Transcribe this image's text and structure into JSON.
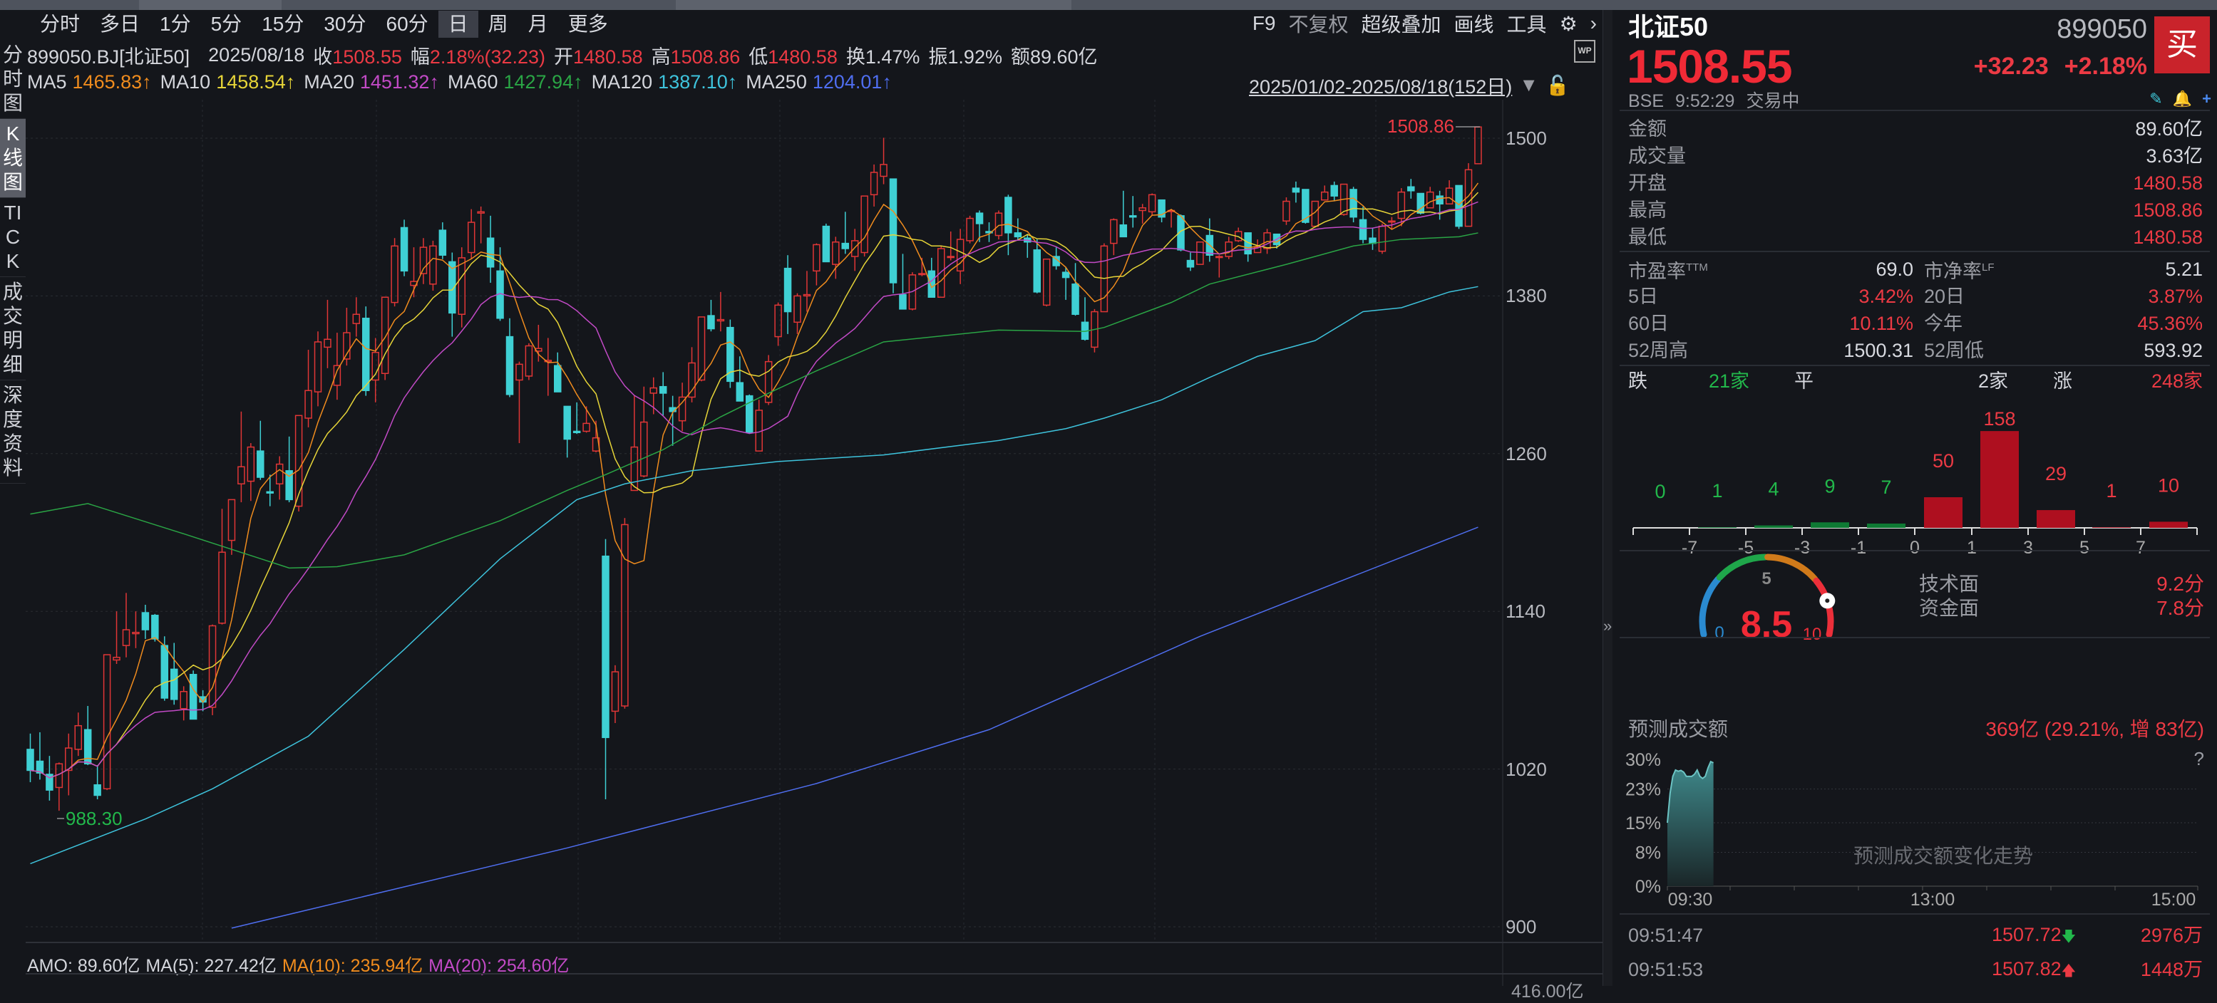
{
  "toolbar": {
    "tabs": [
      "分时",
      "多日",
      "1分",
      "5分",
      "15分",
      "30分",
      "60分",
      "日",
      "周",
      "月",
      "更多"
    ],
    "active": "日",
    "tools": {
      "f9": "F9",
      "adjust": "不复权",
      "overlay": "超级叠加",
      "draw": "画线",
      "tools": "工具"
    }
  },
  "left_tabs": [
    "分时图",
    "K线图",
    "TICK",
    "成交明细",
    "深度资料"
  ],
  "info": {
    "code": "899050.BJ[北证50]",
    "date": "2025/08/18",
    "close_label": "收",
    "close": "1508.55",
    "range_label": "幅",
    "range": "2.18%(32.23)",
    "open_label": "开",
    "open": "1480.58",
    "high_label": "高",
    "high": "1508.86",
    "low_label": "低",
    "low": "1480.58",
    "turnover": "换1.47%",
    "amplitude": "振1.92%",
    "amount": "额89.60亿",
    "wp": "WP"
  },
  "ma": [
    {
      "label": "MA5",
      "value": "1465.83↑",
      "color": "#f08c1e"
    },
    {
      "label": "MA10",
      "value": "1458.54↑",
      "color": "#e6d438"
    },
    {
      "label": "MA20",
      "value": "1451.32↑",
      "color": "#c24ac6"
    },
    {
      "label": "MA60",
      "value": "1427.94↑",
      "color": "#2aa545"
    },
    {
      "label": "MA120",
      "value": "1387.10↑",
      "color": "#3ec3dc"
    },
    {
      "label": "MA250",
      "value": "1204.01↑",
      "color": "#4f6ef0"
    }
  ],
  "date_range": "2025/01/02-2025/08/18(152日)",
  "chart_data": {
    "type": "candlestick",
    "y_ticks": [
      1500,
      1380,
      1260,
      1140,
      1020,
      900
    ],
    "ylim": [
      900,
      1512
    ],
    "grid": true,
    "max_label": "1508.86",
    "min_label": "988.30",
    "up_color": "#e03636",
    "down_color": "#3fd0d4",
    "candles": [
      [
        1035,
        1047,
        1010,
        1019
      ],
      [
        1026,
        1048,
        1012,
        1017
      ],
      [
        1016,
        1030,
        996,
        1004
      ],
      [
        1006,
        1025,
        988.3,
        1024
      ],
      [
        1019,
        1047,
        1000,
        1036
      ],
      [
        1035,
        1063,
        1030,
        1053
      ],
      [
        1050,
        1068,
        1023,
        1024
      ],
      [
        1008,
        1023,
        997,
        1000
      ],
      [
        1005,
        1107,
        1004,
        1107
      ],
      [
        1103,
        1140,
        1100,
        1105
      ],
      [
        1114,
        1154,
        1105,
        1126
      ],
      [
        1123,
        1140,
        1112,
        1124
      ],
      [
        1139,
        1145,
        1119,
        1126
      ],
      [
        1137,
        1138,
        1117,
        1119
      ],
      [
        1114,
        1121,
        1072,
        1074
      ],
      [
        1096,
        1116,
        1069,
        1073
      ],
      [
        1066,
        1083,
        1057,
        1079
      ],
      [
        1092,
        1095,
        1058,
        1058
      ],
      [
        1075,
        1080,
        1064,
        1071
      ],
      [
        1067,
        1130,
        1061,
        1129
      ],
      [
        1131,
        1218,
        1130,
        1185
      ],
      [
        1194,
        1225,
        1183,
        1225
      ],
      [
        1237,
        1292,
        1223,
        1250
      ],
      [
        1239,
        1268,
        1224,
        1265
      ],
      [
        1262,
        1285,
        1240,
        1242
      ],
      [
        1231,
        1244,
        1220,
        1230
      ],
      [
        1237,
        1258,
        1225,
        1252
      ],
      [
        1247,
        1273,
        1223,
        1225
      ],
      [
        1220,
        1289,
        1216,
        1289
      ],
      [
        1287,
        1339,
        1280,
        1308
      ],
      [
        1307,
        1353,
        1296,
        1345
      ],
      [
        1341,
        1377,
        1325,
        1347
      ],
      [
        1312,
        1352,
        1301,
        1327
      ],
      [
        1332,
        1371,
        1327,
        1352
      ],
      [
        1359,
        1379,
        1349,
        1366
      ],
      [
        1363,
        1372,
        1304,
        1308
      ],
      [
        1316,
        1348,
        1299,
        1337
      ],
      [
        1321,
        1379,
        1316,
        1379
      ],
      [
        1375,
        1424,
        1372,
        1418
      ],
      [
        1432,
        1438,
        1395,
        1399
      ],
      [
        1388,
        1417,
        1379,
        1391
      ],
      [
        1397,
        1424,
        1389,
        1417
      ],
      [
        1389,
        1422,
        1384,
        1418
      ],
      [
        1430,
        1436,
        1408,
        1411
      ],
      [
        1406,
        1413,
        1349,
        1367
      ],
      [
        1366,
        1417,
        1356,
        1409
      ],
      [
        1413,
        1446,
        1408,
        1436
      ],
      [
        1443,
        1448,
        1420,
        1444
      ],
      [
        1424,
        1441,
        1390,
        1402
      ],
      [
        1399,
        1417,
        1361,
        1363
      ],
      [
        1349,
        1363,
        1303,
        1305
      ],
      [
        1316,
        1330,
        1268,
        1328
      ],
      [
        1319,
        1344,
        1316,
        1342
      ],
      [
        1338,
        1358,
        1330,
        1340
      ],
      [
        1330,
        1348,
        1304,
        1331
      ],
      [
        1327,
        1337,
        1307,
        1307
      ],
      [
        1296,
        1296,
        1257,
        1271
      ],
      [
        1277,
        1299,
        1275,
        1276
      ],
      [
        1277,
        1296,
        1276,
        1283
      ],
      [
        1262,
        1285,
        1261,
        1272
      ],
      [
        1182,
        1195,
        997,
        1044
      ],
      [
        1064,
        1099,
        1055,
        1094
      ],
      [
        1068,
        1211,
        1066,
        1206
      ],
      [
        1232,
        1304,
        1232,
        1265
      ],
      [
        1243,
        1311,
        1242,
        1284
      ],
      [
        1306,
        1318,
        1290,
        1310
      ],
      [
        1311,
        1322,
        1289,
        1306
      ],
      [
        1295,
        1304,
        1266,
        1292
      ],
      [
        1285,
        1314,
        1277,
        1303
      ],
      [
        1303,
        1341,
        1299,
        1329
      ],
      [
        1316,
        1364,
        1315,
        1364
      ],
      [
        1365,
        1377,
        1353,
        1355
      ],
      [
        1361,
        1383,
        1353,
        1362
      ],
      [
        1356,
        1362,
        1310,
        1315
      ],
      [
        1314,
        1334,
        1300,
        1300
      ],
      [
        1304,
        1305,
        1275,
        1276
      ],
      [
        1262,
        1301,
        1262,
        1293
      ],
      [
        1299,
        1335,
        1297,
        1330
      ],
      [
        1349,
        1375,
        1342,
        1373
      ],
      [
        1401,
        1411,
        1351,
        1368
      ],
      [
        1360,
        1382,
        1351,
        1380
      ],
      [
        1380,
        1399,
        1368,
        1381
      ],
      [
        1399,
        1420,
        1388,
        1419
      ],
      [
        1433,
        1435,
        1406,
        1406
      ],
      [
        1404,
        1425,
        1393,
        1421
      ],
      [
        1420,
        1444,
        1412,
        1416
      ],
      [
        1410,
        1431,
        1399,
        1422
      ],
      [
        1413,
        1456,
        1410,
        1456
      ],
      [
        1457,
        1480,
        1448,
        1474
      ],
      [
        1471,
        1500.31,
        1465,
        1480
      ],
      [
        1469,
        1469,
        1382,
        1390
      ],
      [
        1381,
        1412,
        1370,
        1370
      ],
      [
        1370,
        1398,
        1369,
        1396
      ],
      [
        1397,
        1409,
        1395,
        1397
      ],
      [
        1399,
        1409,
        1379,
        1379
      ],
      [
        1379,
        1418,
        1379,
        1416
      ],
      [
        1410,
        1429,
        1407,
        1410
      ],
      [
        1399,
        1431,
        1389,
        1423
      ],
      [
        1422,
        1441,
        1420,
        1439
      ],
      [
        1443,
        1445,
        1421,
        1435
      ],
      [
        1429,
        1436,
        1421,
        1428
      ],
      [
        1426,
        1445,
        1423,
        1443
      ],
      [
        1455,
        1457,
        1411,
        1428
      ],
      [
        1428,
        1439,
        1422,
        1425
      ],
      [
        1424,
        1427,
        1409,
        1421
      ],
      [
        1415,
        1423,
        1382,
        1383
      ],
      [
        1373,
        1408,
        1372,
        1408
      ],
      [
        1410,
        1417,
        1400,
        1403
      ],
      [
        1398,
        1402,
        1377,
        1394
      ],
      [
        1389,
        1405,
        1365,
        1366
      ],
      [
        1360,
        1379,
        1346,
        1347
      ],
      [
        1341,
        1370,
        1337,
        1368
      ],
      [
        1368,
        1420,
        1368,
        1418
      ],
      [
        1420,
        1439,
        1411,
        1438
      ],
      [
        1434,
        1460,
        1425,
        1425
      ],
      [
        1441,
        1456,
        1432,
        1440
      ],
      [
        1445,
        1450,
        1435,
        1447
      ],
      [
        1444,
        1458,
        1441,
        1457
      ],
      [
        1453,
        1453,
        1436,
        1440
      ],
      [
        1445,
        1446,
        1432,
        1445
      ],
      [
        1441,
        1442,
        1414,
        1415
      ],
      [
        1407,
        1413,
        1399,
        1402
      ],
      [
        1404,
        1421,
        1404,
        1421
      ],
      [
        1426,
        1439,
        1406,
        1411
      ],
      [
        1410,
        1411,
        1394,
        1410
      ],
      [
        1410,
        1425,
        1408,
        1421
      ],
      [
        1422,
        1432,
        1421,
        1429
      ],
      [
        1428,
        1428,
        1406,
        1412
      ],
      [
        1413,
        1423,
        1413,
        1417
      ],
      [
        1416,
        1431,
        1412,
        1428
      ],
      [
        1427,
        1427,
        1416,
        1419
      ],
      [
        1437,
        1455,
        1434,
        1452
      ],
      [
        1462,
        1467,
        1451,
        1459
      ],
      [
        1461,
        1461,
        1435,
        1436
      ],
      [
        1433,
        1452,
        1432,
        1452
      ],
      [
        1453,
        1464,
        1453,
        1459
      ],
      [
        1464,
        1467,
        1452,
        1456
      ],
      [
        1442,
        1465,
        1441,
        1465
      ],
      [
        1461,
        1463,
        1436,
        1440
      ],
      [
        1438,
        1448,
        1420,
        1423
      ],
      [
        1424,
        1432,
        1415,
        1420
      ],
      [
        1414,
        1435,
        1412,
        1433
      ],
      [
        1437,
        1440,
        1431,
        1437
      ],
      [
        1439,
        1462,
        1433,
        1459
      ],
      [
        1463,
        1469,
        1454,
        1460
      ],
      [
        1458,
        1458,
        1442,
        1443
      ],
      [
        1447,
        1463,
        1447,
        1459
      ],
      [
        1456,
        1460,
        1438,
        1450
      ],
      [
        1450,
        1468,
        1450,
        1462
      ],
      [
        1464,
        1464,
        1431,
        1433
      ],
      [
        1433,
        1481,
        1433,
        1476
      ],
      [
        1480.58,
        1508.86,
        1480.58,
        1508.55
      ]
    ],
    "ma_lines": {
      "MA60": [
        [
          0,
          1214
        ],
        [
          6,
          1222
        ],
        [
          16,
          1199
        ],
        [
          27,
          1173
        ],
        [
          32,
          1174
        ],
        [
          39,
          1183
        ],
        [
          49,
          1209
        ],
        [
          56,
          1232
        ],
        [
          60,
          1244
        ],
        [
          66,
          1263
        ],
        [
          72,
          1288
        ],
        [
          77,
          1306
        ],
        [
          82,
          1323
        ],
        [
          89,
          1345
        ],
        [
          101,
          1354
        ],
        [
          110,
          1353
        ],
        [
          112,
          1356
        ],
        [
          119,
          1375
        ],
        [
          123,
          1389
        ],
        [
          131,
          1404
        ],
        [
          138,
          1418
        ],
        [
          143,
          1423
        ],
        [
          149,
          1425
        ],
        [
          151,
          1427.94
        ]
      ],
      "MA120": [
        [
          0,
          948
        ],
        [
          12,
          982
        ],
        [
          19,
          1005
        ],
        [
          29,
          1045
        ],
        [
          39,
          1111
        ],
        [
          49,
          1180
        ],
        [
          57,
          1225
        ],
        [
          62,
          1237
        ],
        [
          69,
          1247
        ],
        [
          78,
          1254
        ],
        [
          89,
          1259
        ],
        [
          101,
          1270
        ],
        [
          108,
          1279
        ],
        [
          112,
          1287
        ],
        [
          118,
          1301
        ],
        [
          123,
          1318
        ],
        [
          128,
          1334
        ],
        [
          134,
          1346
        ],
        [
          139,
          1368
        ],
        [
          143,
          1371
        ],
        [
          148,
          1383
        ],
        [
          151,
          1387.1
        ]
      ],
      "MA250": [
        [
          21,
          899
        ],
        [
          56,
          960
        ],
        [
          82,
          1009
        ],
        [
          100,
          1050
        ],
        [
          122,
          1121
        ],
        [
          151,
          1204.01
        ]
      ]
    }
  },
  "volume": {
    "amo": "AMO: 89.60亿",
    "ma5": "MA(5): 227.42亿",
    "ma10": "MA(10): 235.94亿",
    "ma20": "MA(20): 254.60亿",
    "axis_top": "416.00亿"
  },
  "quote": {
    "name": "北证50",
    "code": "899050",
    "price": "1508.55",
    "change": "+32.23",
    "pct": "+2.18%",
    "buy": "买",
    "exchange": "BSE",
    "time": "9:52:29",
    "status": "交易中"
  },
  "stats": [
    {
      "label": "金额",
      "value": "89.60亿",
      "color": "#d8dae0"
    },
    {
      "label": "成交量",
      "value": "3.63亿",
      "color": "#d8dae0"
    },
    {
      "label": "开盘",
      "value": "1480.58",
      "color": "#ec3a44"
    },
    {
      "label": "最高",
      "value": "1508.86",
      "color": "#ec3a44"
    },
    {
      "label": "最低",
      "value": "1480.58",
      "color": "#ec3a44"
    }
  ],
  "stats2": [
    [
      {
        "label": "市盈率",
        "sup": "TTM",
        "value": "69.0",
        "color": "#d8dae0"
      },
      {
        "label": "市净率",
        "sup": "LF",
        "value": "5.21",
        "color": "#d8dae0"
      }
    ],
    [
      {
        "label": "5日",
        "value": "3.42%",
        "color": "#ec3a44"
      },
      {
        "label": "20日",
        "value": "3.87%",
        "color": "#ec3a44"
      }
    ],
    [
      {
        "label": "60日",
        "value": "10.11%",
        "color": "#ec3a44"
      },
      {
        "label": "今年",
        "value": "45.36%",
        "color": "#ec3a44"
      }
    ],
    [
      {
        "label": "52周高",
        "value": "1500.31",
        "color": "#d8dae0"
      },
      {
        "label": "52周低",
        "value": "593.92",
        "color": "#d8dae0"
      }
    ]
  ],
  "breadth": {
    "down_label": "跌",
    "down": "21家",
    "flat_label": "平",
    "flat": "2家",
    "up_label": "涨",
    "up": "248家"
  },
  "distribution": {
    "counts": [
      0,
      1,
      4,
      9,
      7,
      50,
      158,
      29,
      1,
      10
    ],
    "ticks": [
      "-7",
      "-5",
      "-3",
      "-1",
      "0",
      "1",
      "3",
      "5",
      "7"
    ]
  },
  "score": {
    "value": "8.5",
    "min": "0",
    "mid": "5",
    "max": "10",
    "level": 8.5,
    "tech_label": "技术面",
    "tech": "9.2分",
    "fund_label": "资金面",
    "fund": "7.8分"
  },
  "forecast": {
    "title": "预测成交额",
    "value": "369亿 (29.21%, 增 83亿)",
    "help": "?",
    "y_ticks": [
      "30%",
      "23%",
      "15%",
      "8%",
      "0%"
    ],
    "x_ticks": [
      "09:30",
      "13:00",
      "15:00"
    ],
    "watermark": "预测成交额变化走势",
    "series": [
      15,
      22,
      26,
      27.5,
      27.2,
      27.4,
      27,
      26,
      26,
      26,
      26.5,
      27.5,
      26,
      25.5,
      26,
      28,
      29.5,
      29.2
    ]
  },
  "ticks": [
    {
      "time": "09:51:47",
      "price": "1507.72",
      "dir": "down",
      "vol": "2976万"
    },
    {
      "time": "09:51:53",
      "price": "1507.82",
      "dir": "up",
      "vol": "1448万"
    }
  ]
}
